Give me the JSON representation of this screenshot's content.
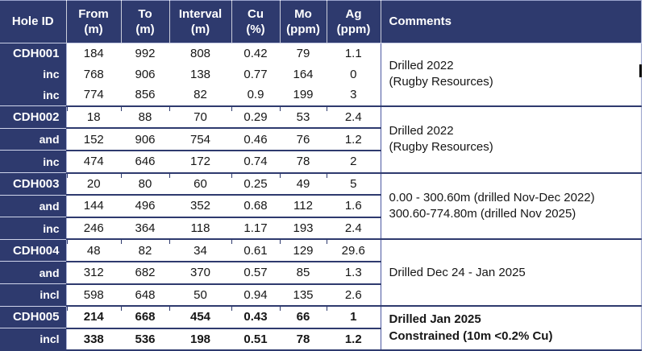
{
  "colors": {
    "header_bg": "#2e3a6e",
    "header_text": "#ffffff",
    "body_text": "#161616",
    "group_separator": "#2e3a6e",
    "light_border": "#9aa3cc"
  },
  "table": {
    "headers": [
      {
        "id": "hole_id",
        "label": "Hole ID"
      },
      {
        "id": "from",
        "label": "From\n(m)"
      },
      {
        "id": "to",
        "label": "To\n(m)"
      },
      {
        "id": "interval",
        "label": "Interval\n(m)"
      },
      {
        "id": "cu",
        "label": "Cu\n(%)"
      },
      {
        "id": "mo",
        "label": "Mo\n(ppm)"
      },
      {
        "id": "ag",
        "label": "Ag\n(ppm)"
      },
      {
        "id": "comments",
        "label": "Comments"
      }
    ],
    "groups": [
      {
        "hole_id": "CDH001",
        "bold": false,
        "rows": [
          {
            "label": "CDH001",
            "values": [
              "184",
              "992",
              "808",
              "0.42",
              "79",
              "1.1"
            ]
          },
          {
            "label": "inc",
            "values": [
              "768",
              "906",
              "138",
              "0.77",
              "164",
              "0"
            ]
          },
          {
            "label": "inc",
            "values": [
              "774",
              "856",
              "82",
              "0.9",
              "199",
              "3"
            ]
          }
        ],
        "comment": [
          "Drilled 2022",
          "(Rugby Resources)"
        ]
      },
      {
        "hole_id": "CDH002",
        "bold": false,
        "rows": [
          {
            "label": "CDH002",
            "values": [
              "18",
              "88",
              "70",
              "0.29",
              "53",
              "2.4"
            ]
          },
          {
            "label": "and",
            "values": [
              "152",
              "906",
              "754",
              "0.46",
              "76",
              "1.2"
            ]
          },
          {
            "label": "inc",
            "values": [
              "474",
              "646",
              "172",
              "0.74",
              "78",
              "2"
            ]
          }
        ],
        "comment": [
          "Drilled 2022",
          "(Rugby Resources)"
        ]
      },
      {
        "hole_id": "CDH003",
        "bold": false,
        "rows": [
          {
            "label": "CDH003",
            "values": [
              "20",
              "80",
              "60",
              "0.25",
              "49",
              "5"
            ]
          },
          {
            "label": "and",
            "values": [
              "144",
              "496",
              "352",
              "0.68",
              "112",
              "1.6"
            ]
          },
          {
            "label": "inc",
            "values": [
              "246",
              "364",
              "118",
              "1.17",
              "193",
              "2.4"
            ]
          }
        ],
        "comment": [
          "0.00 - 300.60m (drilled Nov-Dec 2022)",
          "300.60-774.80m (drilled Nov 2025)"
        ]
      },
      {
        "hole_id": "CDH004",
        "bold": false,
        "rows": [
          {
            "label": "CDH004",
            "values": [
              "48",
              "82",
              "34",
              "0.61",
              "129",
              "29.6"
            ]
          },
          {
            "label": "and",
            "values": [
              "312",
              "682",
              "370",
              "0.57",
              "85",
              "1.3"
            ]
          },
          {
            "label": "incl",
            "values": [
              "598",
              "648",
              "50",
              "0.94",
              "135",
              "2.6"
            ]
          }
        ],
        "comment": [
          "Drilled Dec 24 - Jan 2025"
        ]
      },
      {
        "hole_id": "CDH005",
        "bold": true,
        "rows": [
          {
            "label": "CDH005",
            "values": [
              "214",
              "668",
              "454",
              "0.43",
              "66",
              "1"
            ]
          },
          {
            "label": "incl",
            "values": [
              "338",
              "536",
              "198",
              "0.51",
              "78",
              "1.2"
            ]
          }
        ],
        "comment": [
          "Drilled Jan 2025",
          "Constrained (10m <0.2% Cu)"
        ]
      }
    ]
  }
}
